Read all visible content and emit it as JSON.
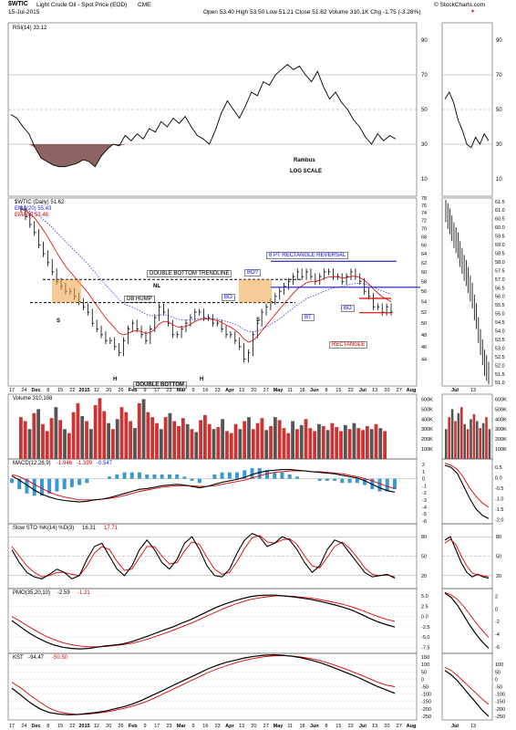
{
  "header": {
    "symbol": "$WTIC",
    "name": "Light Crude Oil - Spot Price (EOD)",
    "exchange": "CME",
    "date": "15-Jul-2015",
    "ohlc": "Open 53.40  High 53.50  Low 51.21  Close 51.62  Volume 310.1K  Chg -1.75 (-3.28%)",
    "chg_arrow": "▼",
    "copyright": "© StockCharts.com"
  },
  "chart_data": [
    {
      "panel": "RSI",
      "type": "line",
      "label": "RSI(14) 33.12",
      "ylim": [
        0,
        100
      ],
      "yticks": [
        10,
        30,
        50,
        70,
        90
      ],
      "reference_lines": [
        30,
        50,
        70
      ],
      "values": [
        47,
        45,
        40,
        36,
        28,
        22,
        20,
        18,
        17,
        17,
        18,
        19,
        21,
        20,
        17,
        23,
        27,
        30,
        29,
        35,
        32,
        36,
        33,
        39,
        37,
        43,
        40,
        45,
        42,
        46,
        40,
        35,
        33,
        30,
        38,
        48,
        55,
        50,
        45,
        52,
        60,
        58,
        66,
        64,
        70,
        73,
        76,
        73,
        75,
        70,
        66,
        72,
        63,
        56,
        60,
        54,
        50,
        44,
        40,
        34,
        30,
        36,
        32,
        35,
        33
      ],
      "inset_values": [
        56,
        60,
        54,
        44,
        38,
        30,
        28,
        34,
        30,
        36,
        32
      ],
      "annotations": [
        "Rambus",
        "LOG SCALE"
      ]
    },
    {
      "panel": "Price",
      "type": "ohlc",
      "label": "$WTIC (Daily) 51.62",
      "overlays": [
        {
          "name": "EMA(20) 55.43",
          "color": "#3333dd",
          "style": "dotted"
        },
        {
          "name": "EMA(8) 53.48",
          "color": "#dd0000",
          "style": "solid"
        }
      ],
      "scale": "log",
      "ylim": [
        40,
        78
      ],
      "yticks": [
        44,
        46,
        48,
        50,
        52,
        54,
        56,
        58,
        60,
        62,
        64,
        66,
        68,
        70,
        72,
        74,
        76,
        78
      ],
      "inset_yticks": [
        51.0,
        51.5,
        52.0,
        52.5,
        53.0,
        53.5,
        54.0,
        54.5,
        55.0,
        55.5,
        56.0,
        56.5,
        57.0,
        57.5,
        58.0,
        58.5,
        59.0,
        59.5,
        60.0,
        60.5,
        61.0,
        61.5
      ],
      "close": [
        75,
        73,
        71,
        69,
        66,
        64,
        62,
        60,
        58,
        57,
        56,
        56,
        55,
        54,
        53,
        52,
        50,
        49,
        48,
        47,
        47,
        46,
        45,
        47,
        49,
        50,
        49,
        48,
        47,
        49,
        51,
        53,
        52,
        50,
        48,
        48,
        49,
        50,
        51,
        52,
        52,
        51,
        51,
        50,
        50,
        49,
        48,
        48,
        47,
        46,
        44,
        45,
        48,
        50,
        52,
        53,
        54,
        55,
        56,
        57,
        58,
        59,
        60,
        59,
        60,
        59,
        58,
        59,
        60,
        60,
        59,
        59,
        58,
        59,
        60,
        59,
        58,
        56,
        55,
        53,
        53,
        52,
        53,
        52
      ],
      "x_labels": [
        "17",
        "24",
        "Dec",
        "8",
        "15",
        "22",
        "2015",
        "12",
        "20",
        "26",
        "Feb",
        "9",
        "17",
        "23",
        "Mar",
        "9",
        "16",
        "23",
        "Apr",
        "13",
        "20",
        "27",
        "May",
        "11",
        "18",
        "Jun",
        "8",
        "15",
        "22",
        "Jul",
        "13",
        "20",
        "27",
        "Aug"
      ],
      "inset_x_labels": [
        "Jul",
        "13"
      ],
      "annotations": {
        "trendline": "DOUBLE BOTTOM TRENDLINE",
        "double_bottom": "DOUBLE BOTTOM",
        "db_hump": "DB HUMP",
        "nl": "NL",
        "rect_reversal": "6 PT RECTANGLE REVERSAL",
        "rectangle": "RECTANGLE",
        "bo_q": "BO?",
        "bo": "BO",
        "bt": "BT",
        "bo2": "BO",
        "s1": "S",
        "s2": "S",
        "h1": "H",
        "h2": "H"
      }
    },
    {
      "panel": "Volume",
      "type": "bar",
      "label": "Volume 310,108",
      "ylim": [
        0,
        600000
      ],
      "yticks": [
        "100K",
        "200K",
        "300K",
        "400K",
        "500K",
        "600K"
      ],
      "values_k": [
        420,
        380,
        300,
        460,
        500,
        350,
        280,
        410,
        520,
        390,
        300,
        260,
        470,
        560,
        430,
        380,
        300,
        540,
        610,
        480,
        360,
        300,
        400,
        520,
        470,
        380,
        310,
        560,
        600,
        470,
        420,
        360,
        300,
        420,
        460,
        380,
        330,
        410,
        350,
        300,
        270,
        390,
        440,
        350,
        300,
        320,
        400,
        280,
        260,
        350,
        300,
        380,
        420,
        300,
        360,
        410,
        290,
        330,
        420,
        390,
        310,
        260,
        380,
        300,
        340,
        400,
        310,
        280,
        350,
        330,
        290,
        360,
        320,
        280,
        340,
        300,
        360,
        310,
        290,
        330,
        300,
        350,
        310,
        280
      ],
      "up_colors": [
        "#555555",
        "#cc3333"
      ]
    },
    {
      "panel": "MACD",
      "type": "line",
      "label": "MACD(12,26,9)",
      "macd": "-1.946",
      "signal": "-1.399",
      "hist": "-0.547",
      "yticks": [
        2,
        1,
        0,
        -1,
        -2,
        -3,
        -4,
        -5,
        -6
      ],
      "inset_yticks": [
        0.5,
        0.0,
        -0.5,
        -1.0,
        -1.5,
        -2.0
      ],
      "macd_values": [
        0.4,
        -0.2,
        -0.9,
        -1.6,
        -2.2,
        -2.6,
        -2.9,
        -3.1,
        -3.2,
        -3.3,
        -3.2,
        -3.0,
        -2.9,
        -2.7,
        -2.4,
        -2.1,
        -1.8,
        -1.5,
        -1.4,
        -1.2,
        -1.0,
        -0.9,
        -0.8,
        -0.9,
        -1.1,
        -1.3,
        -1.1,
        -0.8,
        -0.5,
        -0.3,
        -0.1,
        0.2,
        0.6,
        0.9,
        1.1,
        1.2,
        1.3,
        1.3,
        1.2,
        1.1,
        1.0,
        0.9,
        0.8,
        0.7,
        0.5,
        0.3,
        0.1,
        -0.3,
        -0.8,
        -1.3,
        -1.7,
        -1.9
      ],
      "signal_values": [
        0.6,
        0.3,
        -0.2,
        -0.8,
        -1.4,
        -1.9,
        -2.3,
        -2.6,
        -2.8,
        -3.0,
        -3.0,
        -3.0,
        -2.9,
        -2.8,
        -2.6,
        -2.4,
        -2.1,
        -1.8,
        -1.6,
        -1.4,
        -1.2,
        -1.1,
        -1.0,
        -1.0,
        -1.0,
        -1.1,
        -1.1,
        -1.0,
        -0.8,
        -0.6,
        -0.4,
        -0.2,
        0.1,
        0.4,
        0.7,
        0.9,
        1.0,
        1.1,
        1.1,
        1.1,
        1.0,
        1.0,
        0.9,
        0.8,
        0.7,
        0.5,
        0.3,
        0.0,
        -0.3,
        -0.7,
        -1.1,
        -1.4
      ]
    },
    {
      "panel": "Slow STO",
      "type": "line",
      "label": "Slow STO %K(14) %D(3)",
      "k": "16.31",
      "d": "17.71",
      "yticks": [
        20,
        50,
        80
      ],
      "k_values": [
        60,
        40,
        25,
        18,
        15,
        22,
        30,
        25,
        15,
        20,
        45,
        65,
        70,
        50,
        30,
        20,
        35,
        60,
        75,
        60,
        40,
        30,
        45,
        70,
        80,
        60,
        35,
        20,
        18,
        30,
        55,
        75,
        85,
        80,
        65,
        70,
        80,
        75,
        60,
        40,
        25,
        35,
        60,
        75,
        70,
        55,
        40,
        25,
        18,
        20,
        22,
        16
      ],
      "d_values": [
        65,
        50,
        35,
        25,
        18,
        20,
        25,
        25,
        22,
        20,
        35,
        55,
        65,
        60,
        42,
        28,
        30,
        48,
        65,
        65,
        50,
        38,
        40,
        58,
        72,
        68,
        48,
        30,
        22,
        25,
        42,
        62,
        78,
        82,
        72,
        70,
        75,
        77,
        68,
        50,
        35,
        32,
        48,
        65,
        72,
        62,
        48,
        32,
        22,
        20,
        21,
        18
      ]
    },
    {
      "panel": "PMO",
      "type": "line",
      "label": "PMO(35,20,10)",
      "pmo": "-2.59",
      "signal": "-1.21",
      "yticks": [
        "5.0",
        "2.5",
        "0.0",
        "-2.5",
        "-5.0",
        "-7.5"
      ],
      "inset_yticks": [
        "2",
        "0",
        "-2",
        "-4",
        "-6"
      ],
      "pmo_values": [
        -1.0,
        -2.5,
        -4.0,
        -5.2,
        -6.2,
        -7.0,
        -7.5,
        -7.8,
        -7.9,
        -7.8,
        -7.5,
        -7.2,
        -7.0,
        -6.7,
        -6.2,
        -5.5,
        -4.8,
        -4.0,
        -3.2,
        -2.5,
        -1.6,
        -0.8,
        0.2,
        1.2,
        2.2,
        3.0,
        3.7,
        4.3,
        4.8,
        5.1,
        5.2,
        5.2,
        5.0,
        4.8,
        4.5,
        4.2,
        3.8,
        3.3,
        2.8,
        2.2,
        1.5,
        0.6,
        -0.4,
        -1.3,
        -2.0,
        -2.6
      ],
      "signal_values": [
        0.0,
        -1.2,
        -2.5,
        -3.7,
        -4.8,
        -5.7,
        -6.4,
        -6.9,
        -7.2,
        -7.4,
        -7.4,
        -7.3,
        -7.1,
        -6.9,
        -6.6,
        -6.1,
        -5.5,
        -4.8,
        -4.1,
        -3.3,
        -2.5,
        -1.7,
        -0.8,
        0.2,
        1.1,
        2.0,
        2.8,
        3.5,
        4.1,
        4.5,
        4.8,
        5.0,
        5.0,
        4.9,
        4.7,
        4.5,
        4.2,
        3.8,
        3.4,
        2.9,
        2.3,
        1.6,
        0.8,
        0.0,
        -0.7,
        -1.2
      ]
    },
    {
      "panel": "KST",
      "type": "line",
      "label": "KST",
      "kst": "-94.47",
      "signal": "-50.50",
      "yticks": [
        150,
        100,
        50,
        0,
        -50,
        -100,
        -150,
        -200,
        -250
      ],
      "inset_yticks": [
        100,
        50,
        0,
        -50,
        -100,
        -150,
        -200,
        -250
      ],
      "kst_values": [
        -60,
        -110,
        -160,
        -200,
        -225,
        -235,
        -240,
        -238,
        -232,
        -225,
        -215,
        -200,
        -185,
        -165,
        -140,
        -110,
        -80,
        -50,
        -20,
        10,
        40,
        70,
        95,
        115,
        130,
        145,
        155,
        162,
        165,
        162,
        155,
        145,
        130,
        112,
        90,
        65,
        40,
        15,
        -15,
        -45,
        -70,
        -95
      ],
      "signal_values": [
        -20,
        -60,
        -110,
        -155,
        -195,
        -220,
        -232,
        -238,
        -236,
        -230,
        -222,
        -210,
        -197,
        -180,
        -160,
        -135,
        -105,
        -75,
        -45,
        -15,
        15,
        45,
        70,
        92,
        112,
        128,
        142,
        152,
        158,
        160,
        157,
        150,
        140,
        126,
        108,
        86,
        62,
        38,
        12,
        -15,
        -38,
        -50
      ]
    }
  ]
}
